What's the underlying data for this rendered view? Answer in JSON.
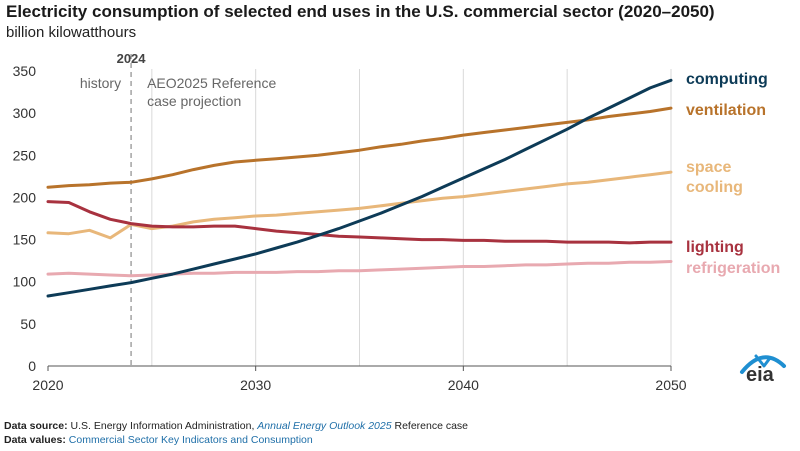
{
  "title": "Electricity consumption of selected end uses in the U.S. commercial sector (2020–2050)",
  "subtitle": "billion kilowatthours",
  "annotations": {
    "marker_year": "2024",
    "history_label": "history",
    "projection_label_line1": "AEO2025 Reference",
    "projection_label_line2": "case projection"
  },
  "footer": {
    "source_label": "Data source:",
    "source_text": "U.S. Energy Information Administration,",
    "source_link": "Annual Energy Outlook 2025",
    "source_suffix": "Reference case",
    "values_label": "Data values:",
    "values_link": "Commercial Sector Key Indicators and Consumption"
  },
  "logo_text": "eia",
  "colors": {
    "computing": "#0d3b57",
    "ventilation": "#b8732b",
    "space_cooling": "#e8b77a",
    "lighting": "#a8323f",
    "refrigeration": "#e8a9b0",
    "axis": "#555555",
    "grid": "#d9d9d9",
    "marker": "#8c8c8c",
    "logo_blue": "#1f8fd1"
  },
  "chart_data": {
    "type": "line",
    "xlim": [
      2020,
      2050
    ],
    "ylim": [
      0,
      350
    ],
    "xticks": [
      2020,
      2030,
      2040,
      2050
    ],
    "yticks": [
      0,
      50,
      100,
      150,
      200,
      250,
      300,
      350
    ],
    "grid": "vertical",
    "legend": "right end labels",
    "marker_line_x": 2024,
    "series": [
      {
        "name": "computing",
        "key": "computing",
        "x": [
          2020,
          2021,
          2022,
          2023,
          2024,
          2025,
          2026,
          2027,
          2028,
          2029,
          2030,
          2031,
          2032,
          2033,
          2034,
          2035,
          2036,
          2037,
          2038,
          2039,
          2040,
          2041,
          2042,
          2043,
          2044,
          2045,
          2046,
          2047,
          2048,
          2049,
          2050
        ],
        "y": [
          83,
          87,
          91,
          95,
          99,
          104,
          109,
          115,
          121,
          127,
          133,
          140,
          147,
          155,
          163,
          172,
          181,
          191,
          201,
          212,
          223,
          234,
          245,
          257,
          269,
          281,
          294,
          306,
          318,
          330,
          339
        ]
      },
      {
        "name": "ventilation",
        "key": "ventilation",
        "x": [
          2020,
          2021,
          2022,
          2023,
          2024,
          2025,
          2026,
          2027,
          2028,
          2029,
          2030,
          2031,
          2032,
          2033,
          2034,
          2035,
          2036,
          2037,
          2038,
          2039,
          2040,
          2041,
          2042,
          2043,
          2044,
          2045,
          2046,
          2047,
          2048,
          2049,
          2050
        ],
        "y": [
          212,
          214,
          215,
          217,
          218,
          222,
          227,
          233,
          238,
          242,
          244,
          246,
          248,
          250,
          253,
          256,
          260,
          263,
          267,
          270,
          274,
          277,
          280,
          283,
          286,
          289,
          292,
          296,
          299,
          302,
          306
        ]
      },
      {
        "name": "space cooling",
        "key": "space_cooling",
        "x": [
          2020,
          2021,
          2022,
          2023,
          2024,
          2025,
          2026,
          2027,
          2028,
          2029,
          2030,
          2031,
          2032,
          2033,
          2034,
          2035,
          2036,
          2037,
          2038,
          2039,
          2040,
          2041,
          2042,
          2043,
          2044,
          2045,
          2046,
          2047,
          2048,
          2049,
          2050
        ],
        "y": [
          158,
          157,
          161,
          152,
          168,
          163,
          166,
          171,
          174,
          176,
          178,
          179,
          181,
          183,
          185,
          187,
          190,
          193,
          196,
          199,
          201,
          204,
          207,
          210,
          213,
          216,
          218,
          221,
          224,
          227,
          230
        ]
      },
      {
        "name": "lighting",
        "key": "lighting",
        "x": [
          2020,
          2021,
          2022,
          2023,
          2024,
          2025,
          2026,
          2027,
          2028,
          2029,
          2030,
          2031,
          2032,
          2033,
          2034,
          2035,
          2036,
          2037,
          2038,
          2039,
          2040,
          2041,
          2042,
          2043,
          2044,
          2045,
          2046,
          2047,
          2048,
          2049,
          2050
        ],
        "y": [
          195,
          194,
          183,
          174,
          169,
          166,
          165,
          165,
          166,
          166,
          163,
          160,
          158,
          156,
          154,
          153,
          152,
          151,
          150,
          150,
          149,
          149,
          148,
          148,
          148,
          147,
          147,
          147,
          146,
          147,
          147
        ]
      },
      {
        "name": "refrigeration",
        "key": "refrigeration",
        "x": [
          2020,
          2021,
          2022,
          2023,
          2024,
          2025,
          2026,
          2027,
          2028,
          2029,
          2030,
          2031,
          2032,
          2033,
          2034,
          2035,
          2036,
          2037,
          2038,
          2039,
          2040,
          2041,
          2042,
          2043,
          2044,
          2045,
          2046,
          2047,
          2048,
          2049,
          2050
        ],
        "y": [
          109,
          110,
          109,
          108,
          107,
          108,
          109,
          110,
          110,
          111,
          111,
          111,
          112,
          112,
          113,
          113,
          114,
          115,
          116,
          117,
          118,
          118,
          119,
          120,
          120,
          121,
          122,
          122,
          123,
          123,
          124
        ]
      }
    ],
    "end_labels": [
      {
        "key": "computing",
        "lines": [
          "computing"
        ]
      },
      {
        "key": "ventilation",
        "lines": [
          "ventilation"
        ]
      },
      {
        "key": "space_cooling",
        "lines": [
          "space",
          "cooling"
        ]
      },
      {
        "key": "lighting",
        "lines": [
          "lighting"
        ]
      },
      {
        "key": "refrigeration",
        "lines": [
          "refrigeration"
        ]
      }
    ]
  }
}
